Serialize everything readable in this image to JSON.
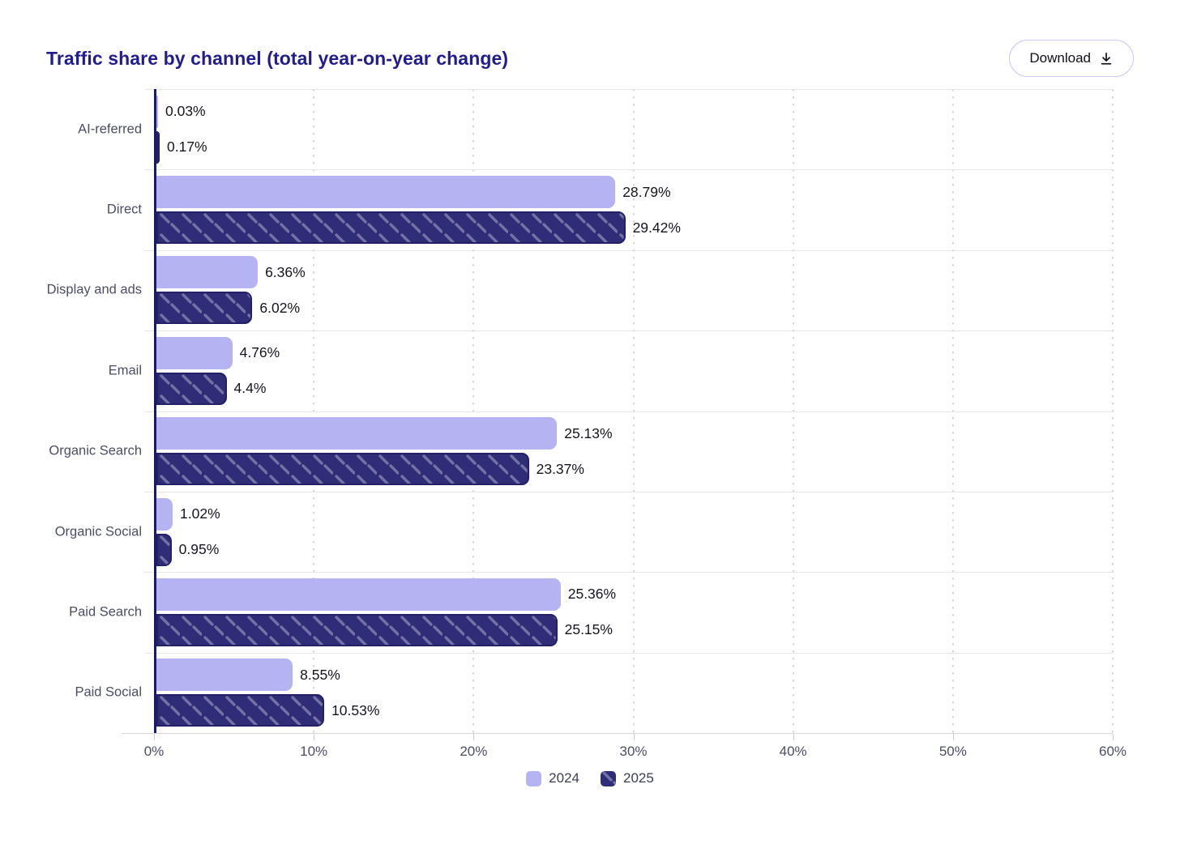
{
  "header": {
    "title": "Traffic share by channel (total year-on-year change)",
    "download_label": "Download",
    "download_icon": "download-arrow"
  },
  "colors": {
    "title": "#211d90",
    "bar_2024": "#b5b3f2",
    "bar_2025": "#2f2c78",
    "bar_2025_border": "#232065",
    "hatch": "rgba(255,255,255,0.33)",
    "y_axis": "#1d1a64",
    "grid": "#d7d7df",
    "button_border": "#c9c8f3"
  },
  "chart_data": {
    "type": "bar",
    "orientation": "horizontal",
    "title": "Traffic share by channel (total year-on-year change)",
    "xlabel": "",
    "ylabel": "",
    "xlim": [
      0,
      60
    ],
    "grid": "vertical-dotted",
    "legend_position": "bottom",
    "categories": [
      "AI-referred",
      "Direct",
      "Display and ads",
      "Email",
      "Organic Search",
      "Organic Social",
      "Paid Search",
      "Paid Social"
    ],
    "series": [
      {
        "name": "2024",
        "color": "#b5b3f2",
        "pattern": "solid",
        "values": [
          0.03,
          28.79,
          6.36,
          4.76,
          25.13,
          1.02,
          25.36,
          8.55
        ]
      },
      {
        "name": "2025",
        "color": "#2f2c78",
        "pattern": "diagonal-hatch",
        "values": [
          0.17,
          29.42,
          6.02,
          4.4,
          23.37,
          0.95,
          25.15,
          10.53
        ]
      }
    ],
    "value_labels": [
      [
        "0.03%",
        "28.79%",
        "6.36%",
        "4.76%",
        "25.13%",
        "1.02%",
        "25.36%",
        "8.55%"
      ],
      [
        "0.17%",
        "29.42%",
        "6.02%",
        "4.4%",
        "23.37%",
        "0.95%",
        "25.15%",
        "10.53%"
      ]
    ],
    "x_tick_values": [
      0,
      10,
      20,
      30,
      40,
      50,
      60
    ],
    "x_tick_labels": [
      "0%",
      "10%",
      "20%",
      "30%",
      "40%",
      "50%",
      "60%"
    ]
  }
}
